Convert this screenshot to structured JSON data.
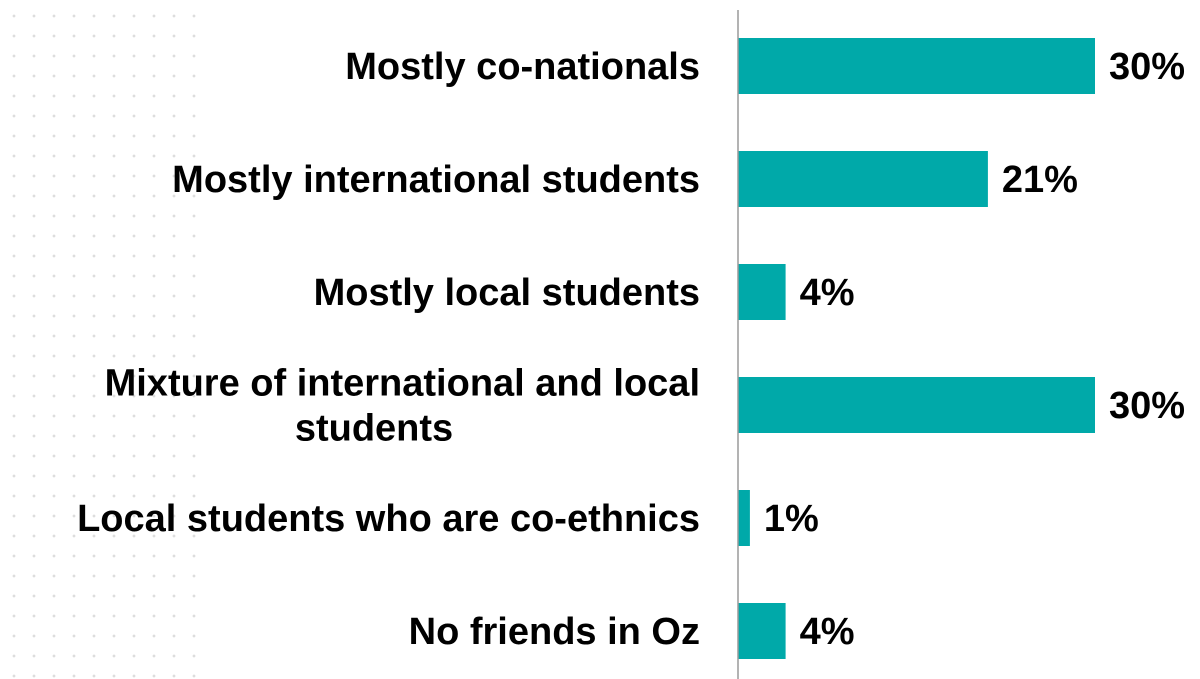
{
  "chart_data": {
    "type": "bar",
    "orientation": "horizontal",
    "categories": [
      [
        "Mostly co-nationals"
      ],
      [
        "Mostly international students"
      ],
      [
        "Mostly local students"
      ],
      [
        "Mixture of international and local",
        "students"
      ],
      [
        "Local students who are co-ethnics"
      ],
      [
        "No friends in Oz"
      ]
    ],
    "values": [
      30,
      21,
      4,
      30,
      1,
      4
    ],
    "value_labels": [
      "30%",
      "21%",
      "4%",
      "30%",
      "1%",
      "4%"
    ],
    "bar_color": "#00A9A9",
    "axis_color": "#9a9a9a",
    "xlim": [
      0,
      30
    ],
    "grid": false,
    "legend": "none",
    "title": "",
    "xlabel": "",
    "ylabel": ""
  }
}
